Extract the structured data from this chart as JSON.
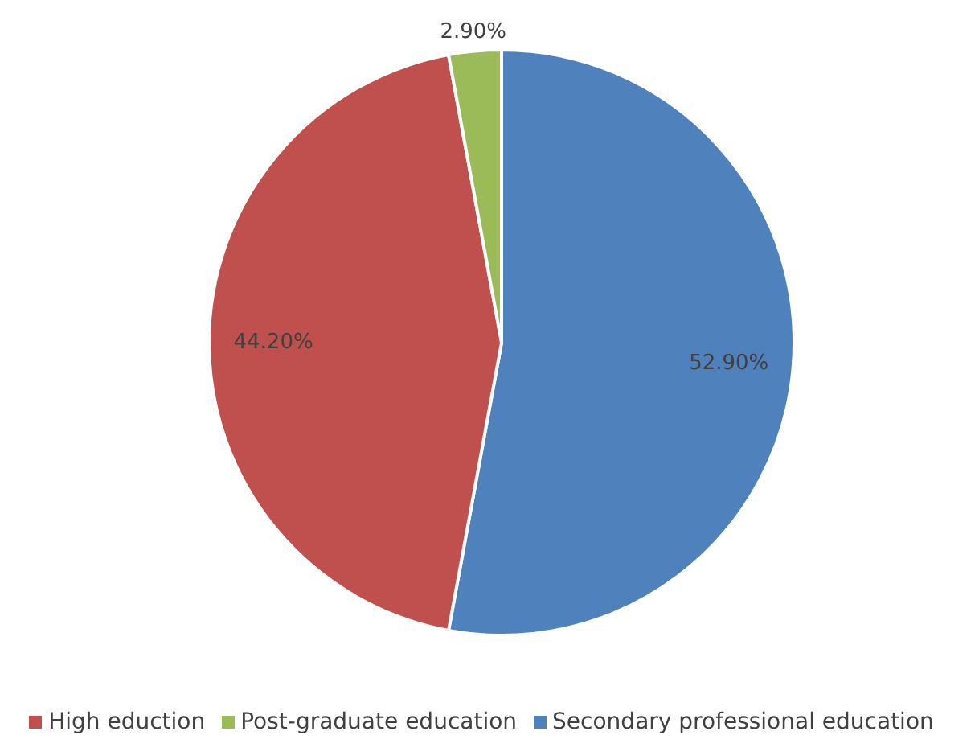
{
  "chart_data": {
    "type": "pie",
    "categories": [
      "Secondary professional education",
      "High eduction",
      "Post-graduate education"
    ],
    "values": [
      52.9,
      44.2,
      2.9
    ],
    "colors": [
      "#4f81bd",
      "#c0504d",
      "#9bbb59"
    ],
    "value_labels": [
      "52.90%",
      "44.20%",
      "2.90%"
    ],
    "legend": "bottom"
  }
}
